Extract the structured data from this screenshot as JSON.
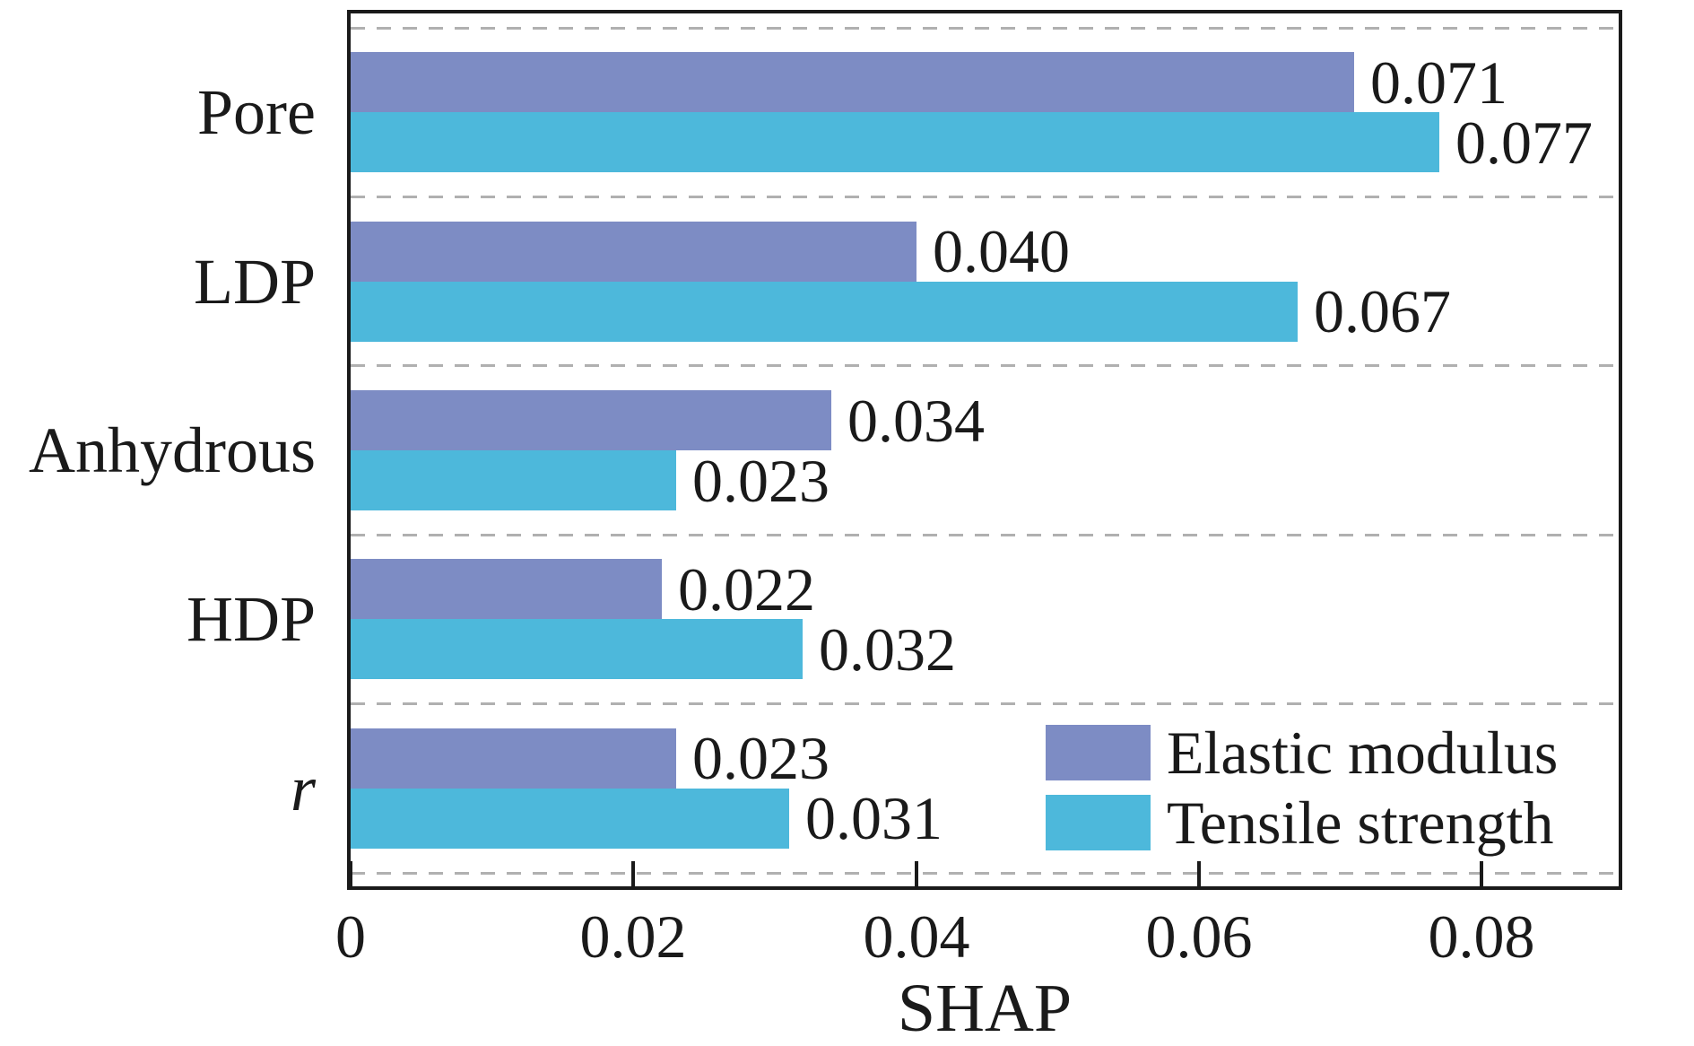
{
  "chart_data": {
    "type": "bar",
    "orientation": "horizontal",
    "title": "",
    "xlabel": "SHAP",
    "ylabel": "",
    "categories": [
      "Pore",
      "LDP",
      "Anhydrous",
      "HDP",
      "r"
    ],
    "categories_italic": [
      false,
      false,
      false,
      false,
      true
    ],
    "series": [
      {
        "name": "Elastic modulus",
        "color": "#7d8cc4",
        "values": [
          0.071,
          0.04,
          0.034,
          0.022,
          0.023
        ],
        "labels": [
          "0.071",
          "0.040",
          "0.034",
          "0.022",
          "0.023"
        ]
      },
      {
        "name": "Tensile strength",
        "color": "#4db8db",
        "values": [
          0.077,
          0.067,
          0.023,
          0.032,
          0.031
        ],
        "labels": [
          "0.077",
          "0.067",
          "0.023",
          "0.032",
          "0.031"
        ]
      }
    ],
    "xticks": {
      "values": [
        0,
        0.02,
        0.04,
        0.06,
        0.08
      ],
      "labels": [
        "0",
        "0.02",
        "0.04",
        "0.06",
        "0.08"
      ]
    },
    "xlim": [
      0,
      0.0897
    ],
    "grid": {
      "visible": true,
      "style": "dashed",
      "color": "#b0b0b0"
    },
    "legend": {
      "position": "lower right"
    },
    "colors": {
      "axis": "#1a1a1a",
      "text": "#1a1a1a",
      "grid": "#b0b0b0",
      "background": "#ffffff"
    }
  }
}
